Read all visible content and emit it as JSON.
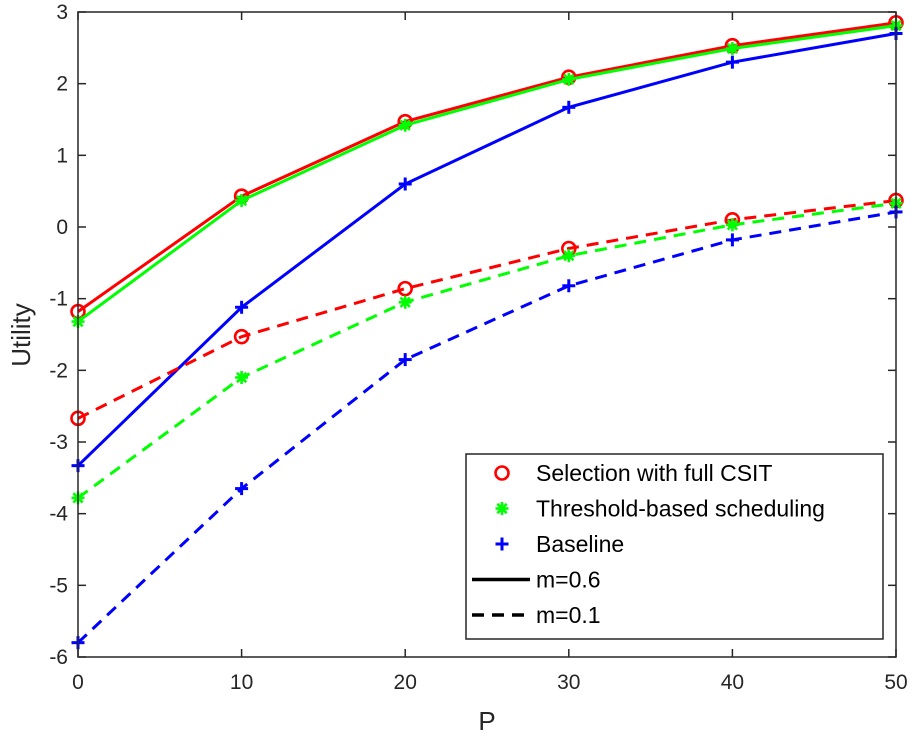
{
  "chart_data": {
    "type": "line",
    "title": "",
    "xlabel": "P",
    "ylabel": "Utility",
    "x": [
      0,
      10,
      20,
      30,
      40,
      50
    ],
    "xlim": [
      0,
      50
    ],
    "ylim": [
      -6,
      3
    ],
    "xticks": [
      "0",
      "10",
      "20",
      "30",
      "40",
      "50"
    ],
    "yticks": [
      "-6",
      "-5",
      "-4",
      "-3",
      "-2",
      "-1",
      "0",
      "1",
      "2",
      "3"
    ],
    "grid": false,
    "legend_position": "bottom-right",
    "series": [
      {
        "name": "Selection with full CSIT",
        "m": "m=0.6",
        "style": "solid",
        "color": "#ff0000",
        "marker": "circle",
        "values": [
          -1.18,
          0.43,
          1.47,
          2.09,
          2.53,
          2.85
        ]
      },
      {
        "name": "Threshold-based scheduling",
        "m": "m=0.6",
        "style": "solid",
        "color": "#00ff00",
        "marker": "asterisk",
        "values": [
          -1.32,
          0.37,
          1.42,
          2.06,
          2.49,
          2.81
        ]
      },
      {
        "name": "Baseline",
        "m": "m=0.6",
        "style": "solid",
        "color": "#0000ff",
        "marker": "plus",
        "values": [
          -3.33,
          -1.12,
          0.6,
          1.67,
          2.3,
          2.7
        ]
      },
      {
        "name": "Selection with full CSIT",
        "m": "m=0.1",
        "style": "dashed",
        "color": "#ff0000",
        "marker": "circle",
        "values": [
          -2.67,
          -1.53,
          -0.86,
          -0.3,
          0.1,
          0.37
        ]
      },
      {
        "name": "Threshold-based scheduling",
        "m": "m=0.1",
        "style": "dashed",
        "color": "#00ff00",
        "marker": "asterisk",
        "values": [
          -3.78,
          -2.1,
          -1.05,
          -0.4,
          0.03,
          0.33
        ]
      },
      {
        "name": "Baseline",
        "m": "m=0.1",
        "style": "dashed",
        "color": "#0000ff",
        "marker": "plus",
        "values": [
          -5.8,
          -3.65,
          -1.85,
          -0.82,
          -0.18,
          0.21
        ]
      }
    ],
    "legend": [
      {
        "label": "Selection with full CSIT",
        "kind": "marker",
        "marker": "circle",
        "color": "#ff0000"
      },
      {
        "label": "Threshold-based scheduling",
        "kind": "marker",
        "marker": "asterisk",
        "color": "#00ff00"
      },
      {
        "label": "Baseline",
        "kind": "marker",
        "marker": "plus",
        "color": "#0000ff"
      },
      {
        "label": "m=0.6",
        "kind": "line",
        "style": "solid",
        "color": "#000000"
      },
      {
        "label": "m=0.1",
        "kind": "line",
        "style": "dashed",
        "color": "#000000"
      }
    ]
  }
}
